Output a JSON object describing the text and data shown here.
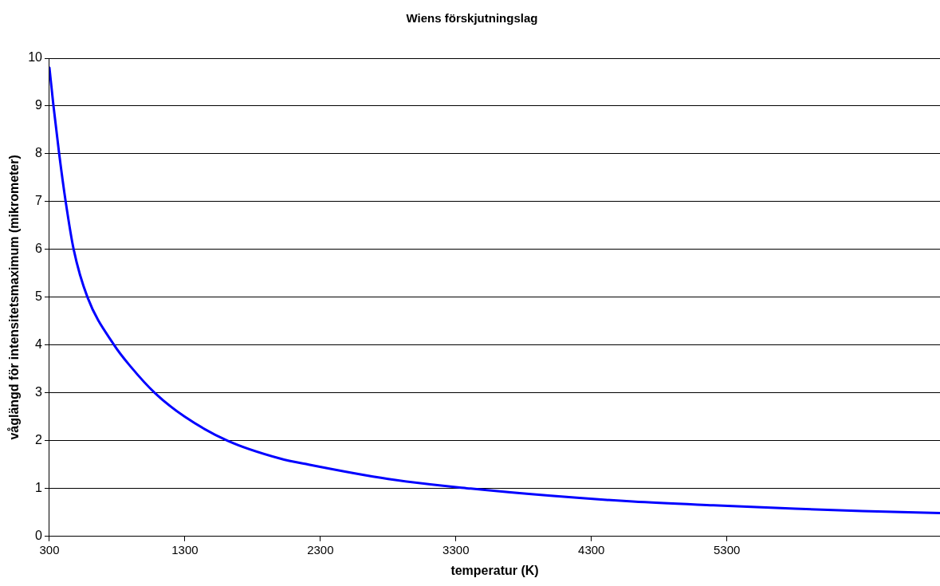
{
  "chart_data": {
    "type": "line",
    "title": "Wiens förskjutningslag",
    "xlabel": "temperatur (K)",
    "ylabel": "våglängd för intensitetsmaximum (mikrometer)",
    "x": [
      300,
      330,
      372,
      420,
      479,
      581,
      778,
      900,
      1078,
      1300,
      1616,
      2000,
      2214,
      2800,
      3410,
      4000,
      4606,
      5200,
      5802,
      6300,
      6873
    ],
    "series": [
      {
        "color": "#0000ff",
        "values": [
          9.8,
          9,
          8,
          7,
          6,
          5,
          4,
          3.55,
          3,
          2.5,
          2,
          1.63,
          1.5,
          1.2,
          1.0,
          0.85,
          0.73,
          0.65,
          0.58,
          0.53,
          0.49
        ]
      }
    ],
    "xlim": [
      300,
      6873
    ],
    "xticks": [
      300,
      1300,
      2300,
      3300,
      4300,
      5300
    ],
    "ylim": [
      0,
      10
    ],
    "yticks": [
      0,
      1,
      2,
      3,
      4,
      5,
      6,
      7,
      8,
      9,
      10
    ],
    "grid": "y",
    "legend": false,
    "marker": "none",
    "line_style": "solid"
  }
}
